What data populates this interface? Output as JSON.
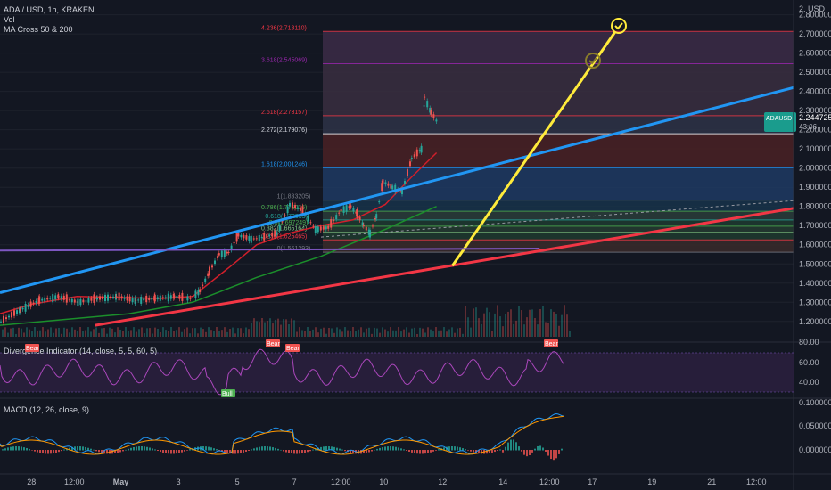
{
  "header": {
    "symbol_line": "ADA / USD, 1h, KRAKEN",
    "vol_label": "Vol",
    "ma_label": "MA Cross 50 & 200",
    "currency": "USD"
  },
  "price_badge": {
    "symbol": "ADAUSD",
    "price": "2.244725",
    "countdown": "43:06"
  },
  "panes": {
    "rsi_label": "Divergence Indicator (14, close, 5, 5, 60, 5)",
    "macd_label": "MACD (12, 26, close, 9)",
    "rsi_scale": [
      "80.00",
      "60.00",
      "40.00"
    ],
    "macd_scale": [
      "0.100000",
      "0.050000",
      "0.000000"
    ]
  },
  "signals": {
    "bear": "Bear",
    "bull": "Bull"
  },
  "colors": {
    "background": "#131722",
    "up": "#26a69a",
    "down": "#ef5350",
    "blue_trendline": "#2196f3",
    "red_trendline": "#f23645",
    "yellow_line": "#ffeb3b",
    "purple_line": "#7e57c2",
    "rsi": "#ab47bc"
  },
  "chart_data": {
    "type": "candlestick",
    "price_axis": [
      "2.800000",
      "2.700000",
      "2.600000",
      "2.500000",
      "2.400000",
      "2.300000",
      "2.200000",
      "2.100000",
      "2.000000",
      "1.900000",
      "1.800000",
      "1.700000",
      "1.600000",
      "1.500000",
      "1.400000",
      "1.300000",
      "1.200000"
    ],
    "ylim": [
      1.12,
      2.84
    ],
    "time_axis": [
      "28",
      "12:00",
      "May",
      "3",
      "5",
      "7",
      "12:00",
      "10",
      "12",
      "14",
      "12:00",
      "17",
      "19",
      "21",
      "12:00"
    ],
    "fib_levels": [
      {
        "ratio": "4.236",
        "price": 2.71311,
        "label": "4.236(2.713110)"
      },
      {
        "ratio": "3.618",
        "price": 2.545069,
        "label": "3.618(2.545069)"
      },
      {
        "ratio": "2.618",
        "price": 2.273157,
        "label": "2.618(2.273157)"
      },
      {
        "ratio": "2.272",
        "price": 2.179076,
        "label": "2.272(2.179076)"
      },
      {
        "ratio": "1.618",
        "price": 2.001246,
        "label": "1.618(2.001246)"
      },
      {
        "ratio": "1",
        "price": 1.833205,
        "label": "1(1.833205)"
      },
      {
        "ratio": "0.786",
        "price": 1.775016,
        "label": "0.786(1.775016)"
      },
      {
        "ratio": "0.618",
        "price": 1.72933,
        "label": "0.618(1.72933)"
      },
      {
        "ratio": "0.5",
        "price": 1.697249,
        "label": "0.5(1.697249)"
      },
      {
        "ratio": "0.382",
        "price": 1.665164,
        "label": "0.382(1.665164)"
      },
      {
        "ratio": "0.236",
        "price": 1.625465,
        "label": "0.236(1.625465)"
      },
      {
        "ratio": "0",
        "price": 1.561293,
        "label": "0(1.561293)"
      }
    ],
    "trendlines": [
      {
        "name": "blue",
        "from": [
          0,
          1.35
        ],
        "to": [
          1,
          2.42
        ]
      },
      {
        "name": "red",
        "from": [
          0.12,
          1.18
        ],
        "to": [
          1,
          1.79
        ]
      },
      {
        "name": "yellow",
        "from": [
          0.57,
          1.49
        ],
        "to": [
          0.775,
          2.71
        ]
      },
      {
        "name": "purple",
        "from": [
          0,
          1.57
        ],
        "to": [
          0.68,
          1.58
        ]
      }
    ],
    "price_path": [
      [
        0.0,
        1.2
      ],
      [
        0.03,
        1.26
      ],
      [
        0.06,
        1.31
      ],
      [
        0.09,
        1.33
      ],
      [
        0.12,
        1.3
      ],
      [
        0.15,
        1.32
      ],
      [
        0.18,
        1.33
      ],
      [
        0.21,
        1.31
      ],
      [
        0.24,
        1.32
      ],
      [
        0.27,
        1.33
      ],
      [
        0.295,
        1.32
      ],
      [
        0.31,
        1.36
      ],
      [
        0.325,
        1.46
      ],
      [
        0.34,
        1.55
      ],
      [
        0.355,
        1.56
      ],
      [
        0.37,
        1.65
      ],
      [
        0.39,
        1.63
      ],
      [
        0.41,
        1.64
      ],
      [
        0.43,
        1.66
      ],
      [
        0.45,
        1.81
      ],
      [
        0.47,
        1.78
      ],
      [
        0.49,
        1.68
      ],
      [
        0.51,
        1.69
      ],
      [
        0.53,
        1.78
      ],
      [
        0.545,
        1.8
      ],
      [
        0.555,
        1.76
      ],
      [
        0.565,
        1.7
      ],
      [
        0.575,
        1.66
      ],
      [
        0.585,
        1.75
      ],
      [
        0.595,
        1.93
      ],
      [
        0.61,
        1.9
      ],
      [
        0.625,
        1.88
      ],
      [
        0.64,
        2.05
      ],
      [
        0.655,
        2.1
      ],
      [
        0.66,
        2.37
      ],
      [
        0.67,
        2.29
      ],
      [
        0.68,
        2.24
      ]
    ],
    "ma50": [
      [
        0.0,
        1.24
      ],
      [
        0.05,
        1.29
      ],
      [
        0.12,
        1.33
      ],
      [
        0.25,
        1.32
      ],
      [
        0.3,
        1.33
      ],
      [
        0.36,
        1.49
      ],
      [
        0.4,
        1.6
      ],
      [
        0.45,
        1.66
      ],
      [
        0.5,
        1.7
      ],
      [
        0.55,
        1.73
      ],
      [
        0.6,
        1.81
      ],
      [
        0.64,
        1.95
      ],
      [
        0.68,
        2.08
      ]
    ],
    "ma200": [
      [
        0.0,
        1.18
      ],
      [
        0.1,
        1.21
      ],
      [
        0.2,
        1.24
      ],
      [
        0.3,
        1.3
      ],
      [
        0.4,
        1.43
      ],
      [
        0.5,
        1.54
      ],
      [
        0.6,
        1.68
      ],
      [
        0.68,
        1.8
      ]
    ]
  }
}
